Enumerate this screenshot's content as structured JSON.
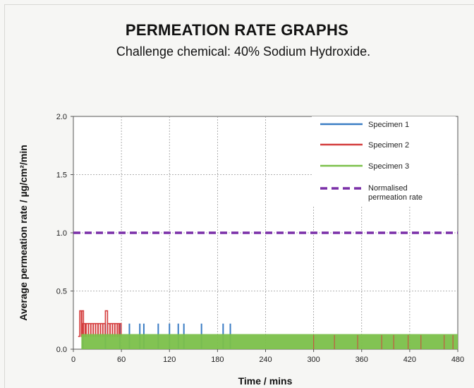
{
  "chart_data": {
    "type": "line",
    "title": "PERMEATION RATE GRAPHS",
    "subtitle": "Challenge chemical: 40% Sodium Hydroxide.",
    "xlabel": "Time / mins",
    "ylabel": "Average permeation rate / µg/cm²/min",
    "xlim": [
      0,
      480
    ],
    "ylim": [
      0,
      2.0
    ],
    "xticks": [
      "0",
      "60",
      "120",
      "180",
      "240",
      "300",
      "360",
      "420",
      "480"
    ],
    "xtick_values": [
      0,
      60,
      120,
      180,
      240,
      300,
      360,
      420,
      480
    ],
    "yticks": [
      "0.0",
      "0.5",
      "1.0",
      "1.5",
      "2.0"
    ],
    "ytick_values": [
      0,
      0.5,
      1.0,
      1.5,
      2.0
    ],
    "grid": true,
    "legend_position": "top-right",
    "series": [
      {
        "name": "Specimen 1",
        "color": "#3a7cc4",
        "style": "spikes",
        "baseline": 0.11,
        "spikes": [
          [
            4,
            0.0
          ],
          [
            12,
            0.22
          ],
          [
            40,
            0.22
          ],
          [
            58,
            0.22
          ],
          [
            70,
            0.22
          ],
          [
            83,
            0.22
          ],
          [
            88,
            0.22
          ],
          [
            106,
            0.22
          ],
          [
            120,
            0.22
          ],
          [
            131,
            0.22
          ],
          [
            138,
            0.22
          ],
          [
            160,
            0.22
          ],
          [
            187,
            0.22
          ],
          [
            196,
            0.22
          ]
        ]
      },
      {
        "name": "Specimen 2",
        "color": "#d43d3d",
        "style": "spikes",
        "baseline": 0.11,
        "burst": [
          [
            8,
            0.33
          ],
          [
            10,
            0.33
          ],
          [
            12,
            0.22
          ],
          [
            16,
            0.22
          ],
          [
            19,
            0.22
          ],
          [
            22,
            0.22
          ],
          [
            25,
            0.22
          ],
          [
            28,
            0.22
          ],
          [
            31,
            0.22
          ],
          [
            34,
            0.22
          ],
          [
            37,
            0.22
          ],
          [
            40,
            0.33
          ],
          [
            43,
            0.22
          ],
          [
            46,
            0.22
          ],
          [
            49,
            0.22
          ],
          [
            52,
            0.22
          ],
          [
            55,
            0.22
          ],
          [
            57,
            0.22
          ]
        ],
        "spikes": [
          [
            300,
            0.11
          ],
          [
            326,
            0.11
          ],
          [
            355,
            0.11
          ],
          [
            385,
            0.11
          ],
          [
            400,
            0.11
          ],
          [
            418,
            0.11
          ],
          [
            434,
            0.11
          ],
          [
            463,
            0.11
          ],
          [
            474,
            0.11
          ]
        ]
      },
      {
        "name": "Specimen 3",
        "color": "#7bc04a",
        "style": "band",
        "band": [
          0.0,
          0.13
        ]
      },
      {
        "name": "Normalised permeation rate",
        "name_lines": [
          "Normalised",
          "permeation rate"
        ],
        "color": "#7a2fa8",
        "style": "dashed",
        "values": [
          [
            0,
            1.0
          ],
          [
            480,
            1.0
          ]
        ]
      }
    ]
  }
}
